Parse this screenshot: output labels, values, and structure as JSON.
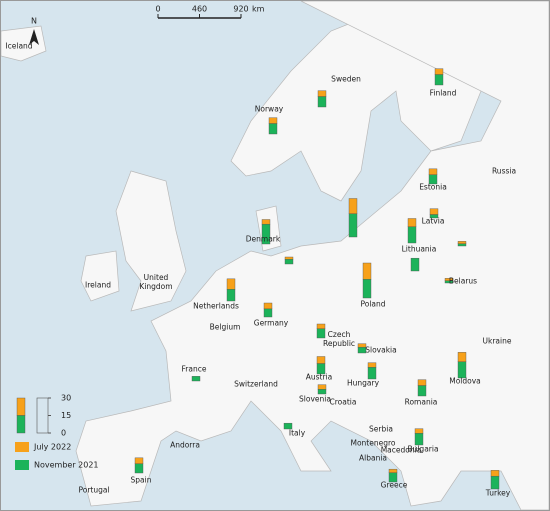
{
  "map": {
    "north": "N",
    "scale_bar": {
      "ticks": [
        0,
        460,
        920
      ],
      "unit": "km"
    },
    "labels": [
      "Iceland",
      "Norway",
      "Sweden",
      "Finland",
      "Russia",
      "Estonia",
      "Latvia",
      "Lithuania",
      "Belarus",
      "Denmark",
      "Ireland",
      "United Kingdom",
      "Netherlands",
      "Belgium",
      "Germany",
      "Poland",
      "Czech Republic",
      "Slovakia",
      "Ukraine",
      "France",
      "Switzerland",
      "Austria",
      "Hungary",
      "Moldova",
      "Romania",
      "Slovenia",
      "Croatia",
      "Italy",
      "Serbia",
      "Andorra",
      "Montenegro",
      "Macedonia",
      "Bulgaria",
      "Albania",
      "Spain",
      "Portugal",
      "Greece",
      "Turkey"
    ],
    "legend": {
      "scale": [
        30,
        15,
        0
      ],
      "series": [
        {
          "name": "July 2022",
          "color": "#f7a11a"
        },
        {
          "name": "November 2021",
          "color": "#1cb35a"
        }
      ]
    },
    "bars": [
      [
        5,
        9
      ],
      [
        5,
        9
      ],
      [
        5,
        9
      ],
      [
        5,
        8
      ],
      [
        5,
        3
      ],
      [
        7,
        14
      ],
      [
        2,
        2
      ],
      [
        2,
        2
      ],
      [
        0,
        11
      ],
      [
        13,
        20
      ],
      [
        4,
        17
      ],
      [
        2,
        4
      ],
      [
        9,
        10
      ],
      [
        5,
        7
      ],
      [
        14,
        16
      ],
      [
        4,
        8
      ],
      [
        3,
        5
      ],
      [
        6,
        9
      ],
      [
        4,
        10
      ],
      [
        4,
        4
      ],
      [
        8,
        14
      ],
      [
        5,
        9
      ],
      [
        4,
        10
      ],
      [
        3,
        8
      ],
      [
        5,
        11
      ],
      [
        5,
        8
      ],
      [
        0,
        4
      ],
      [
        0,
        5
      ]
    ]
  }
}
